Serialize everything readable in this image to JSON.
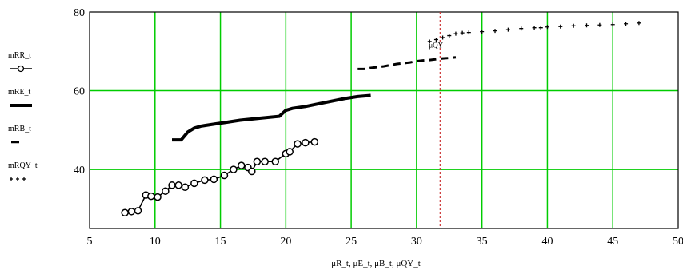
{
  "chart_data": {
    "type": "line",
    "title": "",
    "xlabel": "μR_t, μE_t, μB_t, μQY_t",
    "ylabel": "",
    "xlim": [
      5,
      50
    ],
    "ylim": [
      25,
      80
    ],
    "x_ticks": [
      "5",
      "10",
      "15",
      "20",
      "25",
      "30",
      "35",
      "40",
      "45",
      "50"
    ],
    "y_ticks": [
      "40",
      "60",
      "80"
    ],
    "grid": true,
    "grid_color": "#00cc00",
    "vline": {
      "x": 31.8,
      "color": "#cc3333"
    },
    "annotation": "μQY",
    "legend_position": "left",
    "series": [
      {
        "name": "mRR_t",
        "marker": "circle",
        "linestyle": "solid",
        "x": [
          7.7,
          8.2,
          8.7,
          9.3,
          9.7,
          10.2,
          10.8,
          11.3,
          11.8,
          12.3,
          13.0,
          13.8,
          14.5,
          15.3,
          16.0,
          16.6,
          17.1,
          17.4,
          17.8,
          18.4,
          19.2,
          20.0,
          20.3,
          20.9,
          21.5,
          22.2
        ],
        "y": [
          29.0,
          29.3,
          29.5,
          33.5,
          33.2,
          33.0,
          34.5,
          36.0,
          36.0,
          35.5,
          36.5,
          37.3,
          37.5,
          38.5,
          40.0,
          41.0,
          40.5,
          39.5,
          42.0,
          42.0,
          42.0,
          44.0,
          44.5,
          46.5,
          46.8,
          47.0
        ]
      },
      {
        "name": "mRE_t",
        "marker": "none",
        "linestyle": "thick",
        "x": [
          11.3,
          12.0,
          12.5,
          13.0,
          13.5,
          14.5,
          15.5,
          16.5,
          18.0,
          19.5,
          20.0,
          20.5,
          21.5,
          23.0,
          24.5,
          25.5,
          26.5
        ],
        "y": [
          47.5,
          47.5,
          49.5,
          50.5,
          51.0,
          51.5,
          52.0,
          52.5,
          53.0,
          53.5,
          55.0,
          55.5,
          56.0,
          57.0,
          58.0,
          58.5,
          58.8
        ]
      },
      {
        "name": "mRB_t",
        "marker": "dash",
        "linestyle": "dashed",
        "x": [
          25.5,
          26.0,
          26.5,
          27.0,
          27.5,
          28.0,
          28.5,
          29.0,
          29.5,
          30.0,
          30.5,
          31.0,
          31.5,
          32.0,
          32.5,
          33.0
        ],
        "y": [
          65.5,
          65.5,
          65.8,
          66.0,
          66.2,
          66.5,
          66.8,
          67.0,
          67.2,
          67.5,
          67.7,
          67.8,
          68.0,
          68.2,
          68.3,
          68.5
        ]
      },
      {
        "name": "mRQY_t",
        "marker": "plus",
        "linestyle": "dotted",
        "x": [
          31.0,
          31.5,
          32.0,
          32.5,
          33.0,
          33.5,
          34.0,
          35.0,
          36.0,
          37.0,
          38.0,
          39.0,
          39.5,
          40.0,
          41.0,
          42.0,
          43.0,
          44.0,
          45.0,
          46.0,
          47.0
        ],
        "y": [
          72.5,
          73.0,
          73.5,
          74.0,
          74.5,
          74.7,
          74.8,
          75.0,
          75.2,
          75.5,
          75.8,
          76.0,
          76.0,
          76.2,
          76.3,
          76.5,
          76.6,
          76.7,
          76.8,
          77.0,
          77.2
        ]
      }
    ]
  }
}
